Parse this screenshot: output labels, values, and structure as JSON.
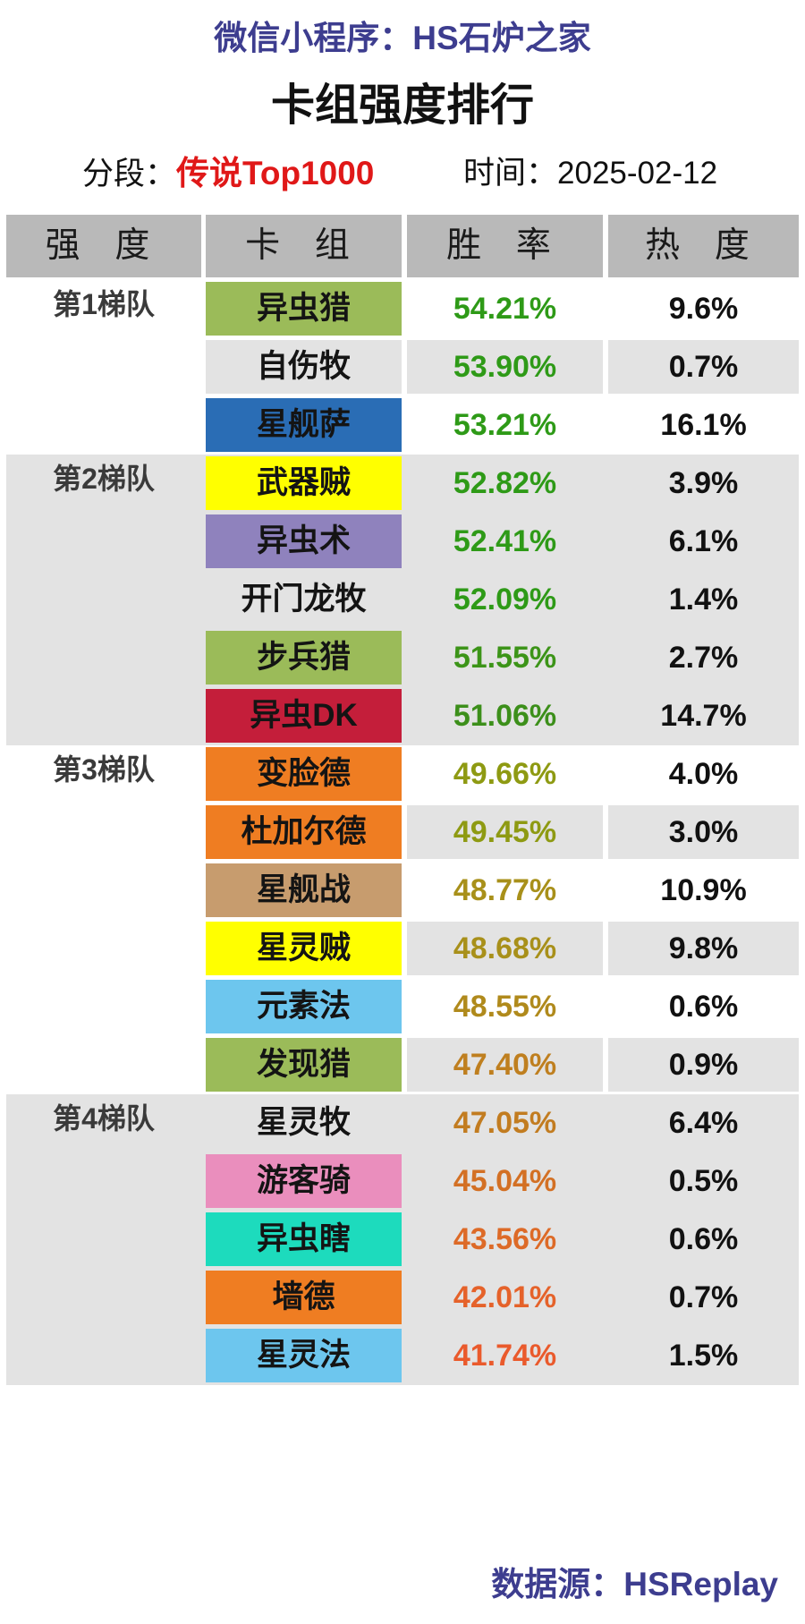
{
  "header": {
    "source": "微信小程序：HS石炉之家",
    "title": "卡组强度排行",
    "rank_label": "分段：",
    "rank_value": "传说Top1000",
    "date_label": "时间：",
    "date_value": "2025-02-12"
  },
  "columns": [
    "强 度",
    "卡 组",
    "胜 率",
    "热 度"
  ],
  "tiers": [
    {
      "label": "第1梯队",
      "decks": [
        {
          "name": "异虫猎",
          "win_rate": "54.21%",
          "popularity": "9.6%",
          "deck_color": "#9bbb59",
          "rate_color": "#2e9a17"
        },
        {
          "name": "自伤牧",
          "win_rate": "53.90%",
          "popularity": "0.7%",
          "deck_color": "#e3e3e3",
          "rate_color": "#2e9a17"
        },
        {
          "name": "星舰萨",
          "win_rate": "53.21%",
          "popularity": "16.1%",
          "deck_color": "#2a6db5",
          "rate_color": "#2e9a17"
        }
      ]
    },
    {
      "label": "第2梯队",
      "decks": [
        {
          "name": "武器贼",
          "win_rate": "52.82%",
          "popularity": "3.9%",
          "deck_color": "#ffff00",
          "rate_color": "#2e9a17"
        },
        {
          "name": "异虫术",
          "win_rate": "52.41%",
          "popularity": "6.1%",
          "deck_color": "#8f82bd",
          "rate_color": "#2e9a17"
        },
        {
          "name": "开门龙牧",
          "win_rate": "52.09%",
          "popularity": "1.4%",
          "deck_color": "#e3e3e3",
          "rate_color": "#2e9a17"
        },
        {
          "name": "步兵猎",
          "win_rate": "51.55%",
          "popularity": "2.7%",
          "deck_color": "#9bbb59",
          "rate_color": "#3c9418"
        },
        {
          "name": "异虫DK",
          "win_rate": "51.06%",
          "popularity": "14.7%",
          "deck_color": "#c41e3a",
          "rate_color": "#3c8f1a"
        }
      ]
    },
    {
      "label": "第3梯队",
      "decks": [
        {
          "name": "变脸德",
          "win_rate": "49.66%",
          "popularity": "4.0%",
          "deck_color": "#ef7d22",
          "rate_color": "#8e9a12"
        },
        {
          "name": "杜加尔德",
          "win_rate": "49.45%",
          "popularity": "3.0%",
          "deck_color": "#ef7d22",
          "rate_color": "#8e9a12"
        },
        {
          "name": "星舰战",
          "win_rate": "48.77%",
          "popularity": "10.9%",
          "deck_color": "#c79c6e",
          "rate_color": "#a8901a"
        },
        {
          "name": "星灵贼",
          "win_rate": "48.68%",
          "popularity": "9.8%",
          "deck_color": "#ffff00",
          "rate_color": "#a8901a"
        },
        {
          "name": "元素法",
          "win_rate": "48.55%",
          "popularity": "0.6%",
          "deck_color": "#6dc6ee",
          "rate_color": "#b08a1c"
        },
        {
          "name": "发现猎",
          "win_rate": "47.40%",
          "popularity": "0.9%",
          "deck_color": "#9bbb59",
          "rate_color": "#bf7f1f"
        }
      ]
    },
    {
      "label": "第4梯队",
      "decks": [
        {
          "name": "星灵牧",
          "win_rate": "47.05%",
          "popularity": "6.4%",
          "deck_color": "#e3e3e3",
          "rate_color": "#c27c20"
        },
        {
          "name": "游客骑",
          "win_rate": "45.04%",
          "popularity": "0.5%",
          "deck_color": "#ea8ebd",
          "rate_color": "#d37024"
        },
        {
          "name": "异虫瞎",
          "win_rate": "43.56%",
          "popularity": "0.6%",
          "deck_color": "#1ddbbd",
          "rate_color": "#dd6a27"
        },
        {
          "name": "墙德",
          "win_rate": "42.01%",
          "popularity": "0.7%",
          "deck_color": "#ef7d22",
          "rate_color": "#e5622a"
        },
        {
          "name": "星灵法",
          "win_rate": "41.74%",
          "popularity": "1.5%",
          "deck_color": "#6dc6ee",
          "rate_color": "#ea5a2c"
        }
      ]
    }
  ],
  "footer": {
    "data_source": "数据源：HSReplay"
  }
}
